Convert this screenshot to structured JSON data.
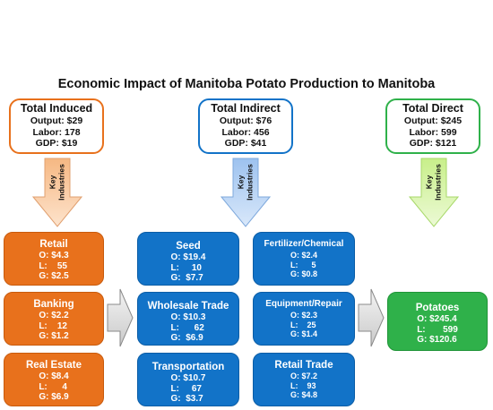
{
  "title": "Economic Impact of Manitoba Potato Production to Manitoba",
  "arrow_label_line1": "Key",
  "arrow_label_line2": "Industries",
  "colors": {
    "induced": "#e8711c",
    "indirect": "#1273c8",
    "direct": "#2fb14a"
  },
  "summaries": {
    "induced": {
      "title": "Total Induced",
      "output": "Output: $29",
      "labor": "Labor: 178",
      "gdp": "GDP: $19"
    },
    "indirect": {
      "title": "Total Indirect",
      "output": "Output: $76",
      "labor": "Labor: 456",
      "gdp": "GDP: $41"
    },
    "direct": {
      "title": "Total Direct",
      "output": "Output: $245",
      "labor": "Labor: 599",
      "gdp": "GDP: $121"
    }
  },
  "induced": [
    {
      "name": "Retail",
      "o": "O: $4.3",
      "l": "L:    55",
      "g": "G: $2.5"
    },
    {
      "name": "Banking",
      "o": "O: $2.2",
      "l": "L:    12",
      "g": "G: $1.2"
    },
    {
      "name": "Real Estate",
      "o": "O: $8.4",
      "l": "L:      4",
      "g": "G: $6.9"
    }
  ],
  "indirect": [
    {
      "name": "Seed",
      "o": "O: $19.4",
      "l": "L:     10",
      "g": "G:  $7.7"
    },
    {
      "name": "Fertilizer/Chemical",
      "o": "O: $2.4",
      "l": "L:      5",
      "g": "G: $0.8"
    },
    {
      "name": "Wholesale Trade",
      "o": "O: $10.3",
      "l": "L:      62",
      "g": "G:  $6.9"
    },
    {
      "name": "Equipment/Repair",
      "o": "O: $2.3",
      "l": "L:    25",
      "g": "G: $1.4"
    },
    {
      "name": "Transportation",
      "o": "O: $10.7",
      "l": "L:     67",
      "g": "G:  $3.7"
    },
    {
      "name": "Retail Trade",
      "o": "O: $7.2",
      "l": "L:    93",
      "g": "G: $4.8"
    }
  ],
  "direct": [
    {
      "name": "Potatoes",
      "o": "O: $245.4",
      "l": "L:       599",
      "g": "G: $120.6"
    }
  ]
}
